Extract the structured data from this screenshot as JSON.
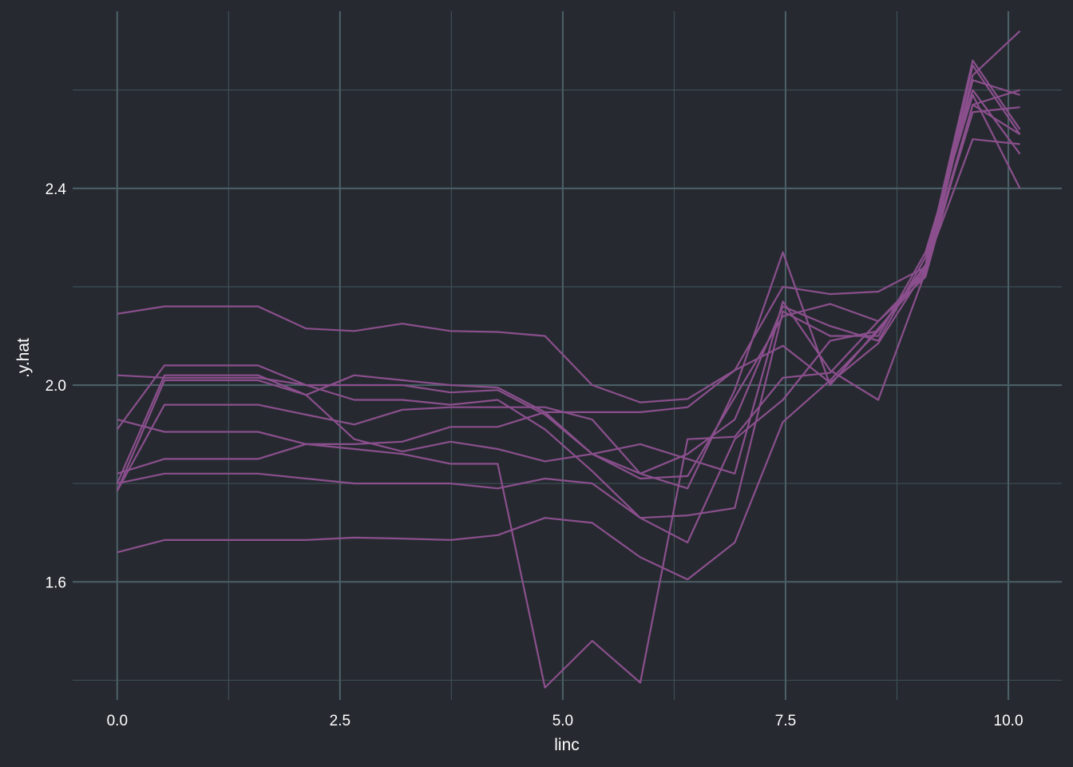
{
  "chart_data": {
    "type": "line",
    "xlabel": "linc",
    "ylabel": ".y.hat",
    "x_ticks": [
      "0.0",
      "2.5",
      "5.0",
      "7.5",
      "10.0"
    ],
    "y_ticks": [
      "1.6",
      "2.0",
      "2.4"
    ],
    "x_tick_values": [
      0,
      2.5,
      5,
      7.5,
      10
    ],
    "y_tick_values": [
      1.6,
      2.0,
      2.4
    ],
    "x_minor_values": [
      1.25,
      3.75,
      6.25,
      8.75
    ],
    "y_minor_values": [
      1.4,
      1.8,
      2.2,
      2.6
    ],
    "xlim": [
      -0.5,
      10.6
    ],
    "ylim": [
      1.36,
      2.77
    ],
    "grid": true,
    "line_color": "#8b4f8d",
    "background": "#262a30",
    "x": [
      0.0,
      0.53,
      1.58,
      2.12,
      2.66,
      3.2,
      3.74,
      4.27,
      4.8,
      5.33,
      5.87,
      6.4,
      6.93,
      7.47,
      8.0,
      8.54,
      9.07,
      9.6,
      10.13
    ],
    "series": [
      {
        "values": [
          2.145,
          2.16,
          2.16,
          2.115,
          2.11,
          2.125,
          2.11,
          2.108,
          2.1,
          2.0,
          1.965,
          1.972,
          2.03,
          2.2,
          2.185,
          2.19,
          2.24,
          2.5,
          2.49
        ]
      },
      {
        "values": [
          2.02,
          2.015,
          2.015,
          2.0,
          2.0,
          2.0,
          1.985,
          1.99,
          1.94,
          1.86,
          1.81,
          1.815,
          1.975,
          2.14,
          2.165,
          2.13,
          2.23,
          2.63,
          2.72
        ]
      },
      {
        "values": [
          1.91,
          2.04,
          2.04,
          2.0,
          1.97,
          1.97,
          1.96,
          1.97,
          1.91,
          1.825,
          1.73,
          1.735,
          1.75,
          2.15,
          2.1,
          2.1,
          2.27,
          2.59,
          2.4
        ]
      },
      {
        "values": [
          1.8,
          2.02,
          2.02,
          1.98,
          2.02,
          2.01,
          2.0,
          1.995,
          1.945,
          1.945,
          1.945,
          1.955,
          2.03,
          2.08,
          2.005,
          2.085,
          2.235,
          2.57,
          2.6
        ]
      },
      {
        "values": [
          1.785,
          1.96,
          1.96,
          1.94,
          1.92,
          1.95,
          1.955,
          1.955,
          1.955,
          1.93,
          1.82,
          1.79,
          1.99,
          2.27,
          2.0,
          2.115,
          2.225,
          2.62,
          2.59
        ]
      },
      {
        "values": [
          1.93,
          1.905,
          1.905,
          1.88,
          1.88,
          1.885,
          1.915,
          1.915,
          1.945,
          1.86,
          1.82,
          1.86,
          1.93,
          2.16,
          2.12,
          2.09,
          2.26,
          2.6,
          2.47
        ]
      },
      {
        "values": [
          1.82,
          1.85,
          1.85,
          1.88,
          1.87,
          1.86,
          1.84,
          1.84,
          1.385,
          1.48,
          1.395,
          1.89,
          1.895,
          2.015,
          2.025,
          2.13,
          2.22,
          2.57,
          2.51
        ]
      },
      {
        "values": [
          1.785,
          2.01,
          2.01,
          1.98,
          1.89,
          1.865,
          1.885,
          1.87,
          1.845,
          1.86,
          1.88,
          1.85,
          1.82,
          2.17,
          2.03,
          1.97,
          2.23,
          2.65,
          2.51
        ]
      },
      {
        "values": [
          1.8,
          1.82,
          1.82,
          1.81,
          1.8,
          1.8,
          1.8,
          1.79,
          1.81,
          1.8,
          1.73,
          1.68,
          1.89,
          1.97,
          2.09,
          2.11,
          2.245,
          2.66,
          2.52
        ]
      },
      {
        "values": [
          1.66,
          1.685,
          1.685,
          1.685,
          1.69,
          1.688,
          1.685,
          1.695,
          1.73,
          1.72,
          1.65,
          1.605,
          1.68,
          1.925,
          2.01,
          2.11,
          2.24,
          2.555,
          2.565
        ]
      }
    ]
  }
}
